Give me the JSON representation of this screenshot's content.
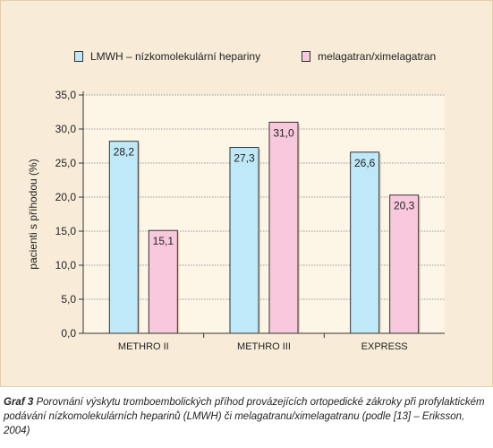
{
  "chart_data": {
    "type": "bar",
    "title": "",
    "xlabel": "",
    "ylabel": "pacienti s příhodou (%)",
    "ylim": [
      0,
      35
    ],
    "yticks": [
      "0,0",
      "5,0",
      "10,0",
      "15,0",
      "20,0",
      "25,0",
      "30,0",
      "35,0"
    ],
    "categories": [
      "METHRO II",
      "METHRO III",
      "EXPRESS"
    ],
    "series": [
      {
        "name": "LMWH – nízkomolekulární hepariny",
        "values": [
          28.2,
          27.3,
          26.6
        ],
        "labels": [
          "28,2",
          "27,3",
          "26,6"
        ],
        "color": "#bfe8f8"
      },
      {
        "name": "melagatran/ximelagatran",
        "values": [
          15.1,
          31.0,
          20.3
        ],
        "labels": [
          "15,1",
          "31,0",
          "20,3"
        ],
        "color": "#f8c8dc"
      }
    ],
    "grid": true,
    "legend_position": "top"
  },
  "caption": {
    "figure_label": "Graf 3",
    "text": "Porovnání výskytu tromboembolických příhod provázejících ortopedické zákroky při profylaktickém podávání nízkomolekulárních heparinů (LMWH) či melagatranu/ximelagatranu (podle [13] – Eriksson, 2004)"
  }
}
